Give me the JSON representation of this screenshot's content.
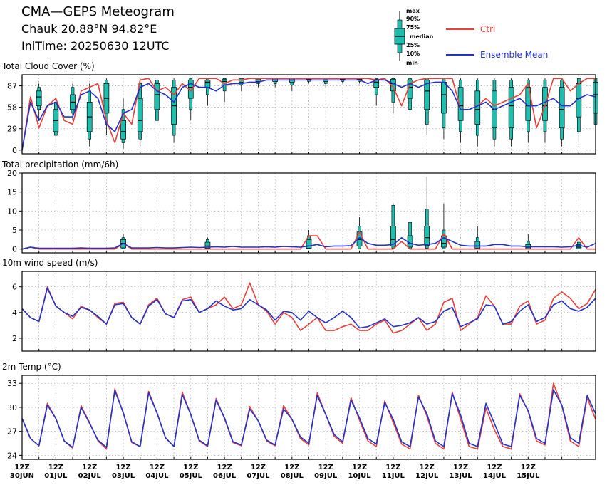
{
  "header": {
    "title": "CMA—GEPS Meteogram",
    "location": "Chauk 20.88°N 94.82°E",
    "init_time": "IniTime: 20250630 12UTC"
  },
  "legend": {
    "box_labels": [
      "max",
      "90%",
      "75%",
      "median",
      "25%",
      "10%",
      "min"
    ],
    "ctrl_label": "Ctrl",
    "mean_label": "Ensemble Mean",
    "colors": {
      "ctrl": "#e8403a",
      "mean": "#2233cc",
      "box": "#1fbfb0",
      "whisker": "#000000"
    }
  },
  "chart_data": [
    {
      "type": "box-line",
      "title": "Total Cloud Cover (%)",
      "ylim": [
        -5,
        102
      ],
      "yticks": [
        0,
        29,
        58,
        87
      ],
      "ctrl": [
        0,
        72,
        30,
        60,
        70,
        40,
        35,
        80,
        85,
        90,
        40,
        10,
        50,
        35,
        95,
        97,
        80,
        85,
        75,
        90,
        80,
        97,
        97,
        97,
        90,
        95,
        95,
        97,
        97,
        97,
        97,
        97,
        97,
        97,
        97,
        97,
        97,
        97,
        97,
        97,
        97,
        97,
        95,
        97,
        85,
        60,
        90,
        95,
        97,
        97,
        97,
        97,
        55,
        55,
        60,
        70,
        60,
        65,
        70,
        75,
        90,
        30,
        60,
        97,
        97,
        80,
        90,
        97,
        97
      ],
      "mean": [
        0,
        65,
        40,
        60,
        65,
        45,
        45,
        75,
        80,
        70,
        35,
        25,
        50,
        55,
        85,
        90,
        80,
        75,
        65,
        85,
        90,
        85,
        85,
        80,
        88,
        90,
        90,
        92,
        92,
        95,
        95,
        95,
        95,
        95,
        95,
        95,
        95,
        95,
        95,
        95,
        95,
        90,
        95,
        95,
        90,
        85,
        90,
        85,
        90,
        92,
        92,
        80,
        55,
        55,
        60,
        65,
        55,
        60,
        65,
        70,
        60,
        60,
        65,
        70,
        60,
        60,
        70,
        75,
        72
      ],
      "boxes": [
        {
          "x": 2,
          "min": 40,
          "p10": 55,
          "p25": 60,
          "med": 72,
          "p75": 80,
          "p90": 85,
          "max": 90
        },
        {
          "x": 4,
          "min": 10,
          "p10": 20,
          "p25": 25,
          "med": 40,
          "p75": 55,
          "p90": 65,
          "max": 80
        },
        {
          "x": 6,
          "min": 40,
          "p10": 50,
          "p25": 55,
          "med": 65,
          "p75": 75,
          "p90": 85,
          "max": 90
        },
        {
          "x": 8,
          "min": 5,
          "p10": 15,
          "p25": 25,
          "med": 45,
          "p75": 65,
          "p90": 80,
          "max": 90
        },
        {
          "x": 10,
          "min": 20,
          "p10": 35,
          "p25": 50,
          "med": 70,
          "p75": 90,
          "p90": 95,
          "max": 97
        },
        {
          "x": 12,
          "min": 2,
          "p10": 10,
          "p25": 15,
          "med": 25,
          "p75": 40,
          "p90": 55,
          "max": 70
        },
        {
          "x": 14,
          "min": 5,
          "p10": 15,
          "p25": 25,
          "med": 40,
          "p75": 70,
          "p90": 90,
          "max": 97
        },
        {
          "x": 16,
          "min": 20,
          "p10": 40,
          "p25": 55,
          "med": 75,
          "p75": 90,
          "p90": 95,
          "max": 97
        },
        {
          "x": 18,
          "min": 10,
          "p10": 20,
          "p25": 35,
          "med": 60,
          "p75": 85,
          "p90": 95,
          "max": 97
        },
        {
          "x": 20,
          "min": 40,
          "p10": 55,
          "p25": 70,
          "med": 85,
          "p75": 95,
          "p90": 97,
          "max": 97
        },
        {
          "x": 22,
          "min": 60,
          "p10": 75,
          "p25": 85,
          "med": 92,
          "p75": 95,
          "p90": 97,
          "max": 97
        },
        {
          "x": 24,
          "min": 65,
          "p10": 80,
          "p25": 88,
          "med": 93,
          "p75": 96,
          "p90": 97,
          "max": 97
        },
        {
          "x": 26,
          "min": 80,
          "p10": 88,
          "p25": 92,
          "med": 95,
          "p75": 97,
          "p90": 97,
          "max": 97
        },
        {
          "x": 28,
          "min": 85,
          "p10": 90,
          "p25": 93,
          "med": 95,
          "p75": 97,
          "p90": 97,
          "max": 97
        },
        {
          "x": 30,
          "min": 85,
          "p10": 90,
          "p25": 93,
          "med": 95,
          "p75": 97,
          "p90": 97,
          "max": 97
        },
        {
          "x": 32,
          "min": 80,
          "p10": 88,
          "p25": 92,
          "med": 95,
          "p75": 97,
          "p90": 97,
          "max": 97
        },
        {
          "x": 34,
          "min": 90,
          "p10": 93,
          "p25": 95,
          "med": 96,
          "p75": 97,
          "p90": 97,
          "max": 97
        },
        {
          "x": 36,
          "min": 85,
          "p10": 90,
          "p25": 93,
          "med": 95,
          "p75": 97,
          "p90": 97,
          "max": 97
        },
        {
          "x": 38,
          "min": 90,
          "p10": 93,
          "p25": 95,
          "med": 96,
          "p75": 97,
          "p90": 97,
          "max": 97
        },
        {
          "x": 40,
          "min": 90,
          "p10": 93,
          "p25": 95,
          "med": 96,
          "p75": 97,
          "p90": 97,
          "max": 97
        },
        {
          "x": 42,
          "min": 60,
          "p10": 75,
          "p25": 85,
          "med": 92,
          "p75": 96,
          "p90": 97,
          "max": 97
        },
        {
          "x": 44,
          "min": 50,
          "p10": 65,
          "p25": 80,
          "med": 90,
          "p75": 96,
          "p90": 97,
          "max": 97
        },
        {
          "x": 46,
          "min": 40,
          "p10": 55,
          "p25": 70,
          "med": 85,
          "p75": 95,
          "p90": 97,
          "max": 97
        },
        {
          "x": 48,
          "min": 20,
          "p10": 35,
          "p25": 55,
          "med": 80,
          "p75": 95,
          "p90": 97,
          "max": 97
        },
        {
          "x": 50,
          "min": 15,
          "p10": 30,
          "p25": 50,
          "med": 75,
          "p75": 92,
          "p90": 97,
          "max": 97
        },
        {
          "x": 52,
          "min": 10,
          "p10": 25,
          "p25": 40,
          "med": 60,
          "p75": 85,
          "p90": 95,
          "max": 97
        },
        {
          "x": 54,
          "min": 5,
          "p10": 20,
          "p25": 35,
          "med": 55,
          "p75": 80,
          "p90": 95,
          "max": 97
        },
        {
          "x": 56,
          "min": 5,
          "p10": 15,
          "p25": 30,
          "med": 55,
          "p75": 80,
          "p90": 95,
          "max": 97
        },
        {
          "x": 58,
          "min": 5,
          "p10": 15,
          "p25": 30,
          "med": 60,
          "p75": 85,
          "p90": 95,
          "max": 97
        },
        {
          "x": 60,
          "min": 10,
          "p10": 25,
          "p25": 40,
          "med": 60,
          "p75": 85,
          "p90": 95,
          "max": 97
        },
        {
          "x": 62,
          "min": 10,
          "p10": 25,
          "p25": 40,
          "med": 60,
          "p75": 85,
          "p90": 95,
          "max": 97
        },
        {
          "x": 64,
          "min": 5,
          "p10": 15,
          "p25": 30,
          "med": 55,
          "p75": 85,
          "p90": 95,
          "max": 97
        },
        {
          "x": 66,
          "min": 10,
          "p10": 25,
          "p25": 45,
          "med": 70,
          "p75": 90,
          "p90": 97,
          "max": 97
        },
        {
          "x": 68,
          "min": 20,
          "p10": 35,
          "p25": 50,
          "med": 75,
          "p75": 92,
          "p90": 97,
          "max": 97
        }
      ]
    },
    {
      "type": "box-line",
      "title": "Total precipitation (mm/6h)",
      "ylim": [
        -1,
        20
      ],
      "yticks": [
        0,
        5,
        10,
        15,
        20
      ],
      "ctrl": [
        0,
        0.5,
        0,
        0,
        0,
        0,
        0,
        0,
        0,
        0,
        0,
        0,
        1.5,
        0,
        0,
        0,
        0,
        0,
        0,
        0,
        0,
        0,
        0,
        0,
        0,
        0,
        0,
        0,
        0,
        0,
        0,
        0,
        0,
        0,
        3.5,
        3.5,
        0,
        0,
        0,
        0,
        4.5,
        0,
        0,
        0,
        0,
        2,
        0,
        0,
        0,
        0,
        4,
        0,
        0,
        0,
        0,
        0,
        0,
        0,
        0,
        0,
        0,
        0,
        0,
        0,
        0,
        0,
        3,
        0,
        0
      ],
      "mean": [
        0,
        0.5,
        0.2,
        0.2,
        0.2,
        0.2,
        0.2,
        0.3,
        0.2,
        0.2,
        0.2,
        0.3,
        1.5,
        0.3,
        0.3,
        0.3,
        0.4,
        0.3,
        0.3,
        0.4,
        0.5,
        0.4,
        0.5,
        0.6,
        0.5,
        0.7,
        0.5,
        0.5,
        0.5,
        0.6,
        0.5,
        0.7,
        0.6,
        0.5,
        0.8,
        1.2,
        0.6,
        0.8,
        0.8,
        0.9,
        3,
        1.5,
        1,
        1,
        1.2,
        3,
        1.5,
        1,
        1.2,
        1.5,
        3,
        2,
        1,
        0.8,
        0.8,
        0.8,
        1.2,
        1.2,
        0.8,
        0.8,
        0.6,
        0.6,
        0.6,
        0.6,
        0.5,
        0.6,
        1,
        0.5,
        1.5
      ],
      "boxes": [
        {
          "x": 12,
          "min": 0,
          "p10": 0,
          "p25": 0.3,
          "med": 1.5,
          "p75": 2.5,
          "p90": 3,
          "max": 4
        },
        {
          "x": 22,
          "min": 0,
          "p10": 0,
          "p25": 0.2,
          "med": 0.8,
          "p75": 1.8,
          "p90": 2.5,
          "max": 3
        },
        {
          "x": 34,
          "min": 0,
          "p10": 0,
          "p25": 0.2,
          "med": 0.8,
          "p75": 2.5,
          "p90": 3.5,
          "max": 5
        },
        {
          "x": 40,
          "min": 0,
          "p10": 0.1,
          "p25": 0.8,
          "med": 2.5,
          "p75": 4.5,
          "p90": 6,
          "max": 8.5
        },
        {
          "x": 44,
          "min": 0,
          "p10": 0.2,
          "p25": 0.8,
          "med": 2.5,
          "p75": 6,
          "p90": 11.5,
          "max": 12
        },
        {
          "x": 46,
          "min": 0,
          "p10": 0,
          "p25": 0.5,
          "med": 1.5,
          "p75": 3.5,
          "p90": 7,
          "max": 10.5
        },
        {
          "x": 48,
          "min": 0,
          "p10": 0.2,
          "p25": 1,
          "med": 3,
          "p75": 6,
          "p90": 10.5,
          "max": 19
        },
        {
          "x": 50,
          "min": 0,
          "p10": 0.1,
          "p25": 0.5,
          "med": 1.5,
          "p75": 3.5,
          "p90": 5,
          "max": 12
        },
        {
          "x": 54,
          "min": 0,
          "p10": 0,
          "p25": 0.2,
          "med": 0.8,
          "p75": 2,
          "p90": 3,
          "max": 6
        },
        {
          "x": 60,
          "min": 0,
          "p10": 0,
          "p25": 0.1,
          "med": 0.5,
          "p75": 1.2,
          "p90": 2,
          "max": 4
        },
        {
          "x": 66,
          "min": 0,
          "p10": 0,
          "p25": 0.1,
          "med": 0.5,
          "p75": 1.2,
          "p90": 1.8,
          "max": 3
        }
      ]
    },
    {
      "type": "box-line",
      "title": "10m wind speed (m/s)",
      "ylim": [
        1,
        7.2
      ],
      "yticks": [
        2,
        4,
        6
      ],
      "ctrl": [
        4.3,
        3.6,
        3.3,
        6,
        4.5,
        4,
        3.5,
        4.5,
        4.2,
        3.6,
        3.1,
        4.7,
        4.8,
        3.6,
        3.1,
        4.6,
        5.1,
        3.9,
        3.6,
        5,
        5.2,
        4,
        4.3,
        4.6,
        5.2,
        4.3,
        4.6,
        6.3,
        4.6,
        4.1,
        3.1,
        4,
        3.6,
        2.6,
        3.1,
        3.6,
        2.6,
        2.6,
        2.9,
        3.1,
        2.6,
        2.6,
        3.1,
        3.4,
        2.4,
        2.6,
        3.1,
        3.6,
        2.6,
        3.1,
        4.8,
        5.1,
        2.6,
        3.1,
        3.6,
        5.3,
        4.5,
        3.1,
        3.1,
        4.5,
        4.9,
        3.1,
        3.4,
        5.1,
        5.6,
        5.1,
        4.3,
        4.7,
        5.8
      ],
      "mean": [
        4.3,
        3.6,
        3.3,
        5.9,
        4.5,
        4,
        3.7,
        4.4,
        4.2,
        3.7,
        3.1,
        4.6,
        4.7,
        3.6,
        3.1,
        4.5,
        5,
        3.9,
        3.6,
        4.9,
        5,
        4,
        4.3,
        4.9,
        4.5,
        4.2,
        4.3,
        5,
        4.6,
        4.2,
        3.4,
        4.1,
        4,
        3.4,
        4.1,
        3.6,
        3.2,
        3.6,
        4.1,
        3.6,
        2.8,
        2.9,
        3.2,
        3.5,
        2.9,
        3,
        3.2,
        3.6,
        3.1,
        3.3,
        4.1,
        4.4,
        2.9,
        3.2,
        3.5,
        4.6,
        4.5,
        3.1,
        3.3,
        4.1,
        4.6,
        3.3,
        3.6,
        4.6,
        4.9,
        4.3,
        4.1,
        4.4,
        5.1
      ]
    },
    {
      "type": "box-line",
      "title": "2m Temp (°C)",
      "ylim": [
        23.5,
        34
      ],
      "yticks": [
        24,
        27,
        30,
        33
      ],
      "ctrl": [
        28.6,
        26.1,
        25.2,
        30.5,
        28.6,
        25.8,
        24.9,
        30.2,
        28.1,
        25.8,
        24.8,
        32.3,
        29.3,
        25.6,
        25.1,
        32,
        29.3,
        26.2,
        25.1,
        31.9,
        29.1,
        25.8,
        25.1,
        31.1,
        28.6,
        25.6,
        25.2,
        30.1,
        28.3,
        25.8,
        25.2,
        30.2,
        28.5,
        26.1,
        25.3,
        31.8,
        29.1,
        26.4,
        25.5,
        31.2,
        28.4,
        25.8,
        25.1,
        30.8,
        28.1,
        25.4,
        24.8,
        31.5,
        28.9,
        25.5,
        24.8,
        31.9,
        28.5,
        25.1,
        24.8,
        29.9,
        27.2,
        25.1,
        24.8,
        31.7,
        29.5,
        25.8,
        25.3,
        33,
        30.2,
        25.8,
        25.1,
        31.2,
        28.5
      ],
      "mean": [
        28.6,
        26.1,
        25.2,
        30.3,
        28.6,
        25.8,
        25,
        30,
        28,
        25.9,
        25,
        32.1,
        29.3,
        25.7,
        25.1,
        31.8,
        29.3,
        26.2,
        25.1,
        31.6,
        29.1,
        25.9,
        25.2,
        30.9,
        28.7,
        25.7,
        25.3,
        29.8,
        28.3,
        25.9,
        25.3,
        29.8,
        28.5,
        26.3,
        25.5,
        31.5,
        29.1,
        26.6,
        25.7,
        30.9,
        28.7,
        26.1,
        25.4,
        30.6,
        28.5,
        25.7,
        25.1,
        31.3,
        29.2,
        25.8,
        25.1,
        31.7,
        29,
        25.5,
        25.1,
        30.5,
        28,
        25.4,
        25.1,
        31.5,
        29.6,
        26.1,
        25.5,
        32.2,
        30.3,
        26.2,
        25.5,
        31.5,
        29.2
      ]
    }
  ],
  "x_axis": {
    "hours_label": "12Z",
    "date_labels": [
      "30JUN",
      "01JUL",
      "02JUL",
      "03JUL",
      "04JUL",
      "05JUL",
      "06JUL",
      "07JUL",
      "08JUL",
      "09JUL",
      "10JUL",
      "11JUL",
      "12JUL",
      "13JUL",
      "14JUL",
      "15JUL"
    ]
  }
}
